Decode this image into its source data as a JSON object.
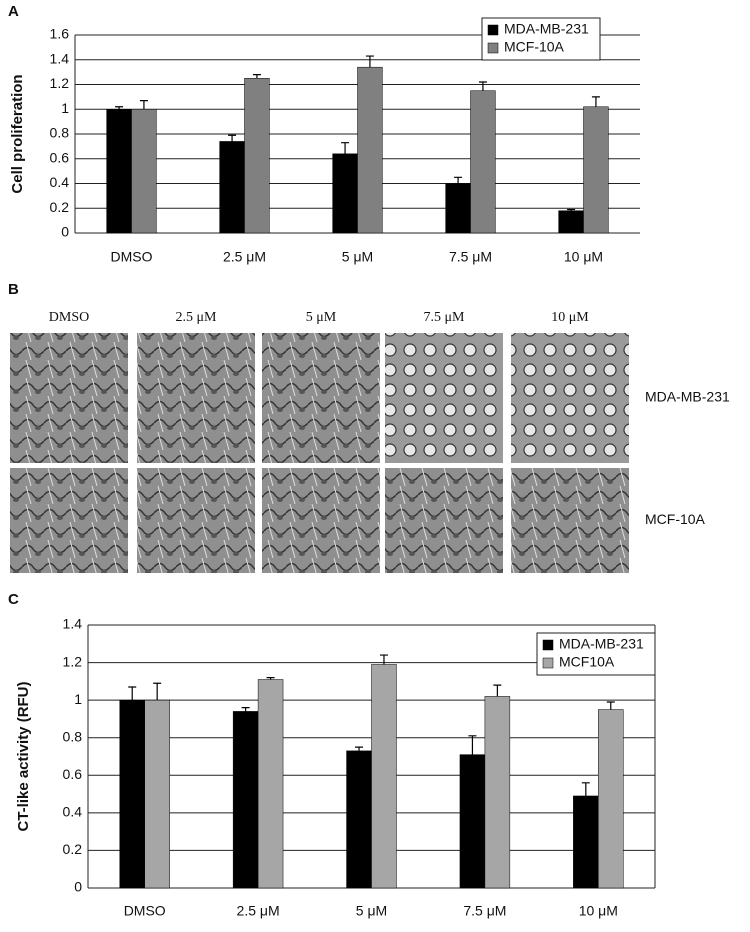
{
  "panels": [
    "A",
    "B",
    "C"
  ],
  "micrographs": {
    "columns": [
      "DMSO",
      "2.5 μM",
      "5 μM",
      "7.5 μM",
      "10 μM"
    ],
    "rows": [
      "MDA-MB-231",
      "MCF-10A"
    ]
  },
  "chart_data": [
    {
      "type": "bar",
      "ylabel": "Cell proliferation",
      "categories": [
        "DMSO",
        "2.5 μM",
        "5 μM",
        "7.5 μM",
        "10 μM"
      ],
      "series": [
        {
          "name": "MDA-MB-231",
          "color": "#000000",
          "values": [
            1.0,
            0.74,
            0.64,
            0.4,
            0.18
          ],
          "errors": [
            0.02,
            0.05,
            0.09,
            0.05,
            0.01
          ]
        },
        {
          "name": "MCF-10A",
          "color": "#808080",
          "values": [
            1.0,
            1.25,
            1.34,
            1.15,
            1.02
          ],
          "errors": [
            0.07,
            0.03,
            0.09,
            0.07,
            0.08
          ]
        }
      ],
      "ylim": [
        0,
        1.6
      ],
      "yticks": [
        0,
        0.2,
        0.4,
        0.6,
        0.8,
        1,
        1.2,
        1.4,
        1.6
      ],
      "grid": true,
      "legend": "top-right"
    },
    {
      "type": "bar",
      "ylabel": "CT-like activity (RFU)",
      "categories": [
        "DMSO",
        "2.5 μM",
        "5 μM",
        "7.5 μM",
        "10 μM"
      ],
      "series": [
        {
          "name": "MDA-MB-231",
          "color": "#000000",
          "values": [
            1.0,
            0.94,
            0.73,
            0.71,
            0.49
          ],
          "errors": [
            0.07,
            0.02,
            0.02,
            0.1,
            0.07
          ]
        },
        {
          "name": "MCF10A",
          "color": "#a6a6a6",
          "values": [
            1.0,
            1.11,
            1.19,
            1.02,
            0.95
          ],
          "errors": [
            0.09,
            0.01,
            0.05,
            0.06,
            0.04
          ]
        }
      ],
      "ylim": [
        0,
        1.4
      ],
      "yticks": [
        0,
        0.2,
        0.4,
        0.6,
        0.8,
        1,
        1.2,
        1.4
      ],
      "grid": true,
      "legend": "top-right"
    }
  ]
}
